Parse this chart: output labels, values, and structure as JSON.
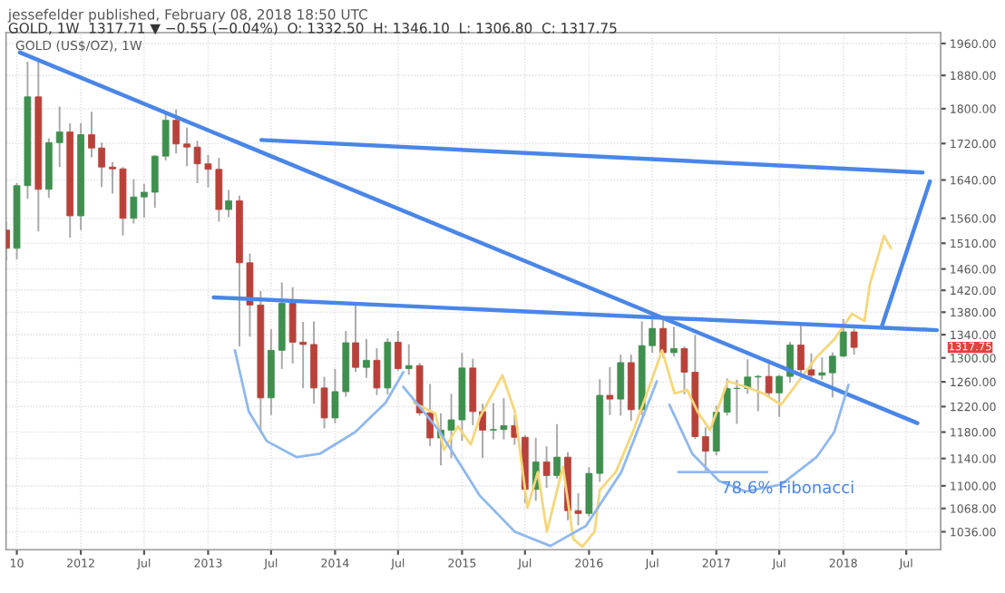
{
  "chart_data": {
    "type": "candlestick",
    "title": "jessefelder published, February 08, 2018 18:50 UTC",
    "subtitle": "GOLD, 1W  1317.71 ▼ −0.55 (−0.04%)  O: 1332.50  H: 1346.10  L: 1306.80  C: 1317.75",
    "annotations": [
      "GOLD (US$/OZ), 1W",
      "1317.75",
      {
        "text": "78.6% Fibonacci",
        "x": "2017-01-15",
        "y": 1096
      }
    ],
    "log": "y",
    "grid": true,
    "xlim": [
      "2011-05-31",
      "2018-10-08"
    ],
    "xticks": [
      {
        "value": "2011-07-01",
        "label": "10"
      },
      {
        "value": "2012-01-01",
        "label": "2012"
      },
      {
        "value": "2012-07-01",
        "label": "Jul"
      },
      {
        "value": "2013-01-01",
        "label": "2013"
      },
      {
        "value": "2013-07-01",
        "label": "Jul"
      },
      {
        "value": "2014-01-01",
        "label": "2014"
      },
      {
        "value": "2014-07-01",
        "label": "Jul"
      },
      {
        "value": "2015-01-01",
        "label": "2015"
      },
      {
        "value": "2015-07-01",
        "label": "Jul"
      },
      {
        "value": "2016-01-01",
        "label": "2016"
      },
      {
        "value": "2016-07-01",
        "label": "Jul"
      },
      {
        "value": "2017-01-01",
        "label": "2017"
      },
      {
        "value": "2017-07-01",
        "label": "Jul"
      },
      {
        "value": "2018-01-01",
        "label": "2018"
      },
      {
        "value": "2018-07-01",
        "label": "Jul"
      }
    ],
    "ylim": [
      1012,
      1988
    ],
    "yticks": [
      {
        "value": 1036,
        "label": "1036.00"
      },
      {
        "value": 1068,
        "label": "1068.00"
      },
      {
        "value": 1100,
        "label": "1100.00"
      },
      {
        "value": 1140,
        "label": "1140.00"
      },
      {
        "value": 1180,
        "label": "1180.00"
      },
      {
        "value": 1220,
        "label": "1220.00"
      },
      {
        "value": 1260,
        "label": "1260.00"
      },
      {
        "value": 1300,
        "label": "1300.00"
      },
      {
        "value": 1340,
        "label": "1340.00"
      },
      {
        "value": 1380,
        "label": "1380.00"
      },
      {
        "value": 1420,
        "label": "1420.00"
      },
      {
        "value": 1460,
        "label": "1460.00"
      },
      {
        "value": 1510,
        "label": "1510.00"
      },
      {
        "value": 1560,
        "label": "1560.00"
      },
      {
        "value": 1640,
        "label": "1640.00"
      },
      {
        "value": 1720,
        "label": "1720.00"
      },
      {
        "value": 1800,
        "label": "1800.00"
      },
      {
        "value": 1880,
        "label": "1880.00"
      },
      {
        "value": 1960,
        "label": "1960.00"
      }
    ],
    "x": [
      "2011-06",
      "2011-07",
      "2011-08",
      "2011-09",
      "2011-10",
      "2011-11",
      "2011-12",
      "2012-01",
      "2012-02",
      "2012-03",
      "2012-04",
      "2012-05",
      "2012-06",
      "2012-07",
      "2012-08",
      "2012-09",
      "2012-10",
      "2012-11",
      "2012-12",
      "2013-01",
      "2013-02",
      "2013-03",
      "2013-04",
      "2013-05",
      "2013-06",
      "2013-07",
      "2013-08",
      "2013-09",
      "2013-10",
      "2013-11",
      "2013-12",
      "2014-01",
      "2014-02",
      "2014-03",
      "2014-04",
      "2014-05",
      "2014-06",
      "2014-07",
      "2014-08",
      "2014-09",
      "2014-10",
      "2014-11",
      "2014-12",
      "2015-01",
      "2015-02",
      "2015-03",
      "2015-04",
      "2015-05",
      "2015-06",
      "2015-07",
      "2015-08",
      "2015-09",
      "2015-10",
      "2015-11",
      "2015-12",
      "2016-01",
      "2016-02",
      "2016-03",
      "2016-04",
      "2016-05",
      "2016-06",
      "2016-07",
      "2016-08",
      "2016-09",
      "2016-10",
      "2016-11",
      "2016-12",
      "2017-01",
      "2017-02",
      "2017-03",
      "2017-04",
      "2017-05",
      "2017-06",
      "2017-07",
      "2017-08",
      "2017-09",
      "2017-10",
      "2017-11",
      "2017-12",
      "2018-01",
      "2018-02"
    ],
    "ohlc": [
      [
        1536,
        1552,
        1478,
        1500
      ],
      [
        1500,
        1632,
        1480,
        1628
      ],
      [
        1628,
        1912,
        1602,
        1828
      ],
      [
        1828,
        1921,
        1535,
        1620
      ],
      [
        1620,
        1730,
        1604,
        1722
      ],
      [
        1722,
        1803,
        1670,
        1746
      ],
      [
        1746,
        1764,
        1523,
        1565
      ],
      [
        1565,
        1764,
        1538,
        1740
      ],
      [
        1740,
        1791,
        1691,
        1710
      ],
      [
        1710,
        1720,
        1627,
        1668
      ],
      [
        1668,
        1677,
        1613,
        1664
      ],
      [
        1664,
        1666,
        1527,
        1560
      ],
      [
        1560,
        1640,
        1551,
        1604
      ],
      [
        1604,
        1630,
        1563,
        1614
      ],
      [
        1614,
        1692,
        1583,
        1692
      ],
      [
        1692,
        1790,
        1684,
        1773
      ],
      [
        1773,
        1796,
        1700,
        1719
      ],
      [
        1719,
        1754,
        1672,
        1712
      ],
      [
        1712,
        1724,
        1635,
        1675
      ],
      [
        1675,
        1693,
        1626,
        1663
      ],
      [
        1663,
        1686,
        1555,
        1578
      ],
      [
        1578,
        1617,
        1564,
        1596
      ],
      [
        1596,
        1605,
        1321,
        1472
      ],
      [
        1472,
        1488,
        1338,
        1393
      ],
      [
        1393,
        1417,
        1180,
        1234
      ],
      [
        1234,
        1348,
        1208,
        1313
      ],
      [
        1313,
        1433,
        1283,
        1396
      ],
      [
        1396,
        1424,
        1292,
        1327
      ],
      [
        1327,
        1361,
        1251,
        1323
      ],
      [
        1323,
        1362,
        1226,
        1250
      ],
      [
        1250,
        1267,
        1187,
        1202
      ],
      [
        1202,
        1280,
        1195,
        1244
      ],
      [
        1244,
        1345,
        1237,
        1326
      ],
      [
        1326,
        1392,
        1278,
        1284
      ],
      [
        1284,
        1331,
        1268,
        1296
      ],
      [
        1296,
        1315,
        1240,
        1250
      ],
      [
        1250,
        1332,
        1241,
        1327
      ],
      [
        1327,
        1345,
        1280,
        1282
      ],
      [
        1282,
        1322,
        1273,
        1287
      ],
      [
        1287,
        1290,
        1207,
        1210
      ],
      [
        1210,
        1255,
        1160,
        1171
      ],
      [
        1171,
        1208,
        1131,
        1183
      ],
      [
        1183,
        1239,
        1142,
        1199
      ],
      [
        1199,
        1307,
        1168,
        1283
      ],
      [
        1283,
        1297,
        1192,
        1212
      ],
      [
        1212,
        1223,
        1142,
        1183
      ],
      [
        1183,
        1224,
        1170,
        1184
      ],
      [
        1184,
        1232,
        1170,
        1190
      ],
      [
        1190,
        1205,
        1162,
        1172
      ],
      [
        1172,
        1174,
        1077,
        1095
      ],
      [
        1095,
        1170,
        1080,
        1135
      ],
      [
        1135,
        1157,
        1098,
        1115
      ],
      [
        1115,
        1191,
        1112,
        1142
      ],
      [
        1142,
        1148,
        1053,
        1065
      ],
      [
        1065,
        1088,
        1046,
        1061
      ],
      [
        1061,
        1126,
        1058,
        1118
      ],
      [
        1118,
        1263,
        1107,
        1238
      ],
      [
        1238,
        1283,
        1208,
        1232
      ],
      [
        1232,
        1304,
        1207,
        1292
      ],
      [
        1292,
        1304,
        1199,
        1215
      ],
      [
        1215,
        1362,
        1208,
        1321
      ],
      [
        1321,
        1375,
        1310,
        1351
      ],
      [
        1351,
        1367,
        1302,
        1309
      ],
      [
        1309,
        1352,
        1304,
        1316
      ],
      [
        1316,
        1318,
        1241,
        1276
      ],
      [
        1276,
        1338,
        1171,
        1173
      ],
      [
        1173,
        1186,
        1123,
        1151
      ],
      [
        1151,
        1220,
        1146,
        1211
      ],
      [
        1211,
        1264,
        1207,
        1249
      ],
      [
        1249,
        1262,
        1194,
        1249
      ],
      [
        1249,
        1296,
        1242,
        1268
      ],
      [
        1268,
        1270,
        1214,
        1269
      ],
      [
        1269,
        1296,
        1236,
        1242
      ],
      [
        1242,
        1270,
        1205,
        1269
      ],
      [
        1269,
        1326,
        1260,
        1322
      ],
      [
        1322,
        1357,
        1275,
        1280
      ],
      [
        1280,
        1306,
        1261,
        1271
      ],
      [
        1271,
        1299,
        1265,
        1275
      ],
      [
        1275,
        1308,
        1236,
        1303
      ],
      [
        1303,
        1366,
        1303,
        1345
      ],
      [
        1345,
        1349,
        1307,
        1318
      ]
    ],
    "series": [
      {
        "type": "line",
        "color": "#f5d77a",
        "x": [
          "2014-08-15",
          "2014-10-16",
          "2014-11-10",
          "2014-12-20",
          "2015-01-26",
          "2015-02-21",
          "2015-04-27",
          "2015-06-02",
          "2015-07-08",
          "2015-08-07",
          "2015-09-02",
          "2015-10-18",
          "2015-11-17",
          "2015-12-13",
          "2016-01-17",
          "2016-02-01",
          "2016-03-18",
          "2016-05-08",
          "2016-06-28",
          "2016-07-29",
          "2016-09-03",
          "2016-10-09",
          "2016-11-08",
          "2016-12-14",
          "2017-02-03",
          "2017-03-26",
          "2017-05-16",
          "2017-07-06",
          "2017-08-26",
          "2017-10-16",
          "2017-12-06",
          "2018-01-26",
          "2018-03-03",
          "2018-03-18",
          "2018-04-28",
          "2018-05-18"
        ],
        "values": [
          1226,
          1209,
          1153,
          1189,
          1161,
          1203,
          1271,
          1212,
          1069,
          1120,
          1036,
          1128,
          1026,
          1016,
          1036,
          1094,
          1120,
          1183,
          1261,
          1313,
          1241,
          1247,
          1212,
          1183,
          1261,
          1252,
          1241,
          1223,
          1261,
          1301,
          1332,
          1377,
          1364,
          1430,
          1525,
          1500
        ]
      },
      {
        "type": "line",
        "color": "#4a86e8",
        "x": [
          "2011-07-10",
          "2018-08-02"
        ],
        "values": [
          1937,
          1194
        ]
      },
      {
        "type": "line",
        "color": "#4a86e8",
        "x": [
          "2013-06-03",
          "2018-08-17"
        ],
        "values": [
          1728,
          1656
        ]
      },
      {
        "type": "line",
        "color": "#4a86e8",
        "x": [
          "2013-01-17",
          "2018-09-27"
        ],
        "values": [
          1407,
          1348
        ]
      },
      {
        "type": "line",
        "color": "#4a86e8",
        "x": [
          "2018-04-22",
          "2018-09-07"
        ],
        "values": [
          1355,
          1637
        ]
      },
      {
        "type": "line",
        "color": "#8fb8ee",
        "x": [
          "2013-03-19",
          "2013-04-28",
          "2013-06-19",
          "2013-09-13",
          "2013-11-18",
          "2014-02-28",
          "2014-05-26",
          "2014-07-16"
        ],
        "values": [
          1313,
          1212,
          1166,
          1142,
          1147,
          1180,
          1226,
          1276
        ]
      },
      {
        "type": "line",
        "color": "#8fb8ee",
        "x": [
          "2014-07-16",
          "2014-10-26",
          "2015-02-21",
          "2015-06-02",
          "2015-09-12",
          "2015-12-23",
          "2016-04-03",
          "2016-07-14"
        ],
        "values": [
          1252,
          1183,
          1086,
          1036,
          1017,
          1044,
          1120,
          1261
        ]
      },
      {
        "type": "line",
        "color": "#8fb8ee",
        "x": [
          "2016-08-19",
          "2016-10-24",
          "2017-01-09",
          "2017-03-26",
          "2017-07-06",
          "2017-10-16",
          "2017-12-06",
          "2018-01-16"
        ],
        "values": [
          1223,
          1147,
          1107,
          1092,
          1102,
          1142,
          1180,
          1255
        ]
      },
      {
        "type": "line",
        "color": "#8fb8ee",
        "x": [
          "2016-09-14",
          "2017-05-27"
        ],
        "values": [
          1120,
          1120
        ]
      }
    ]
  }
}
